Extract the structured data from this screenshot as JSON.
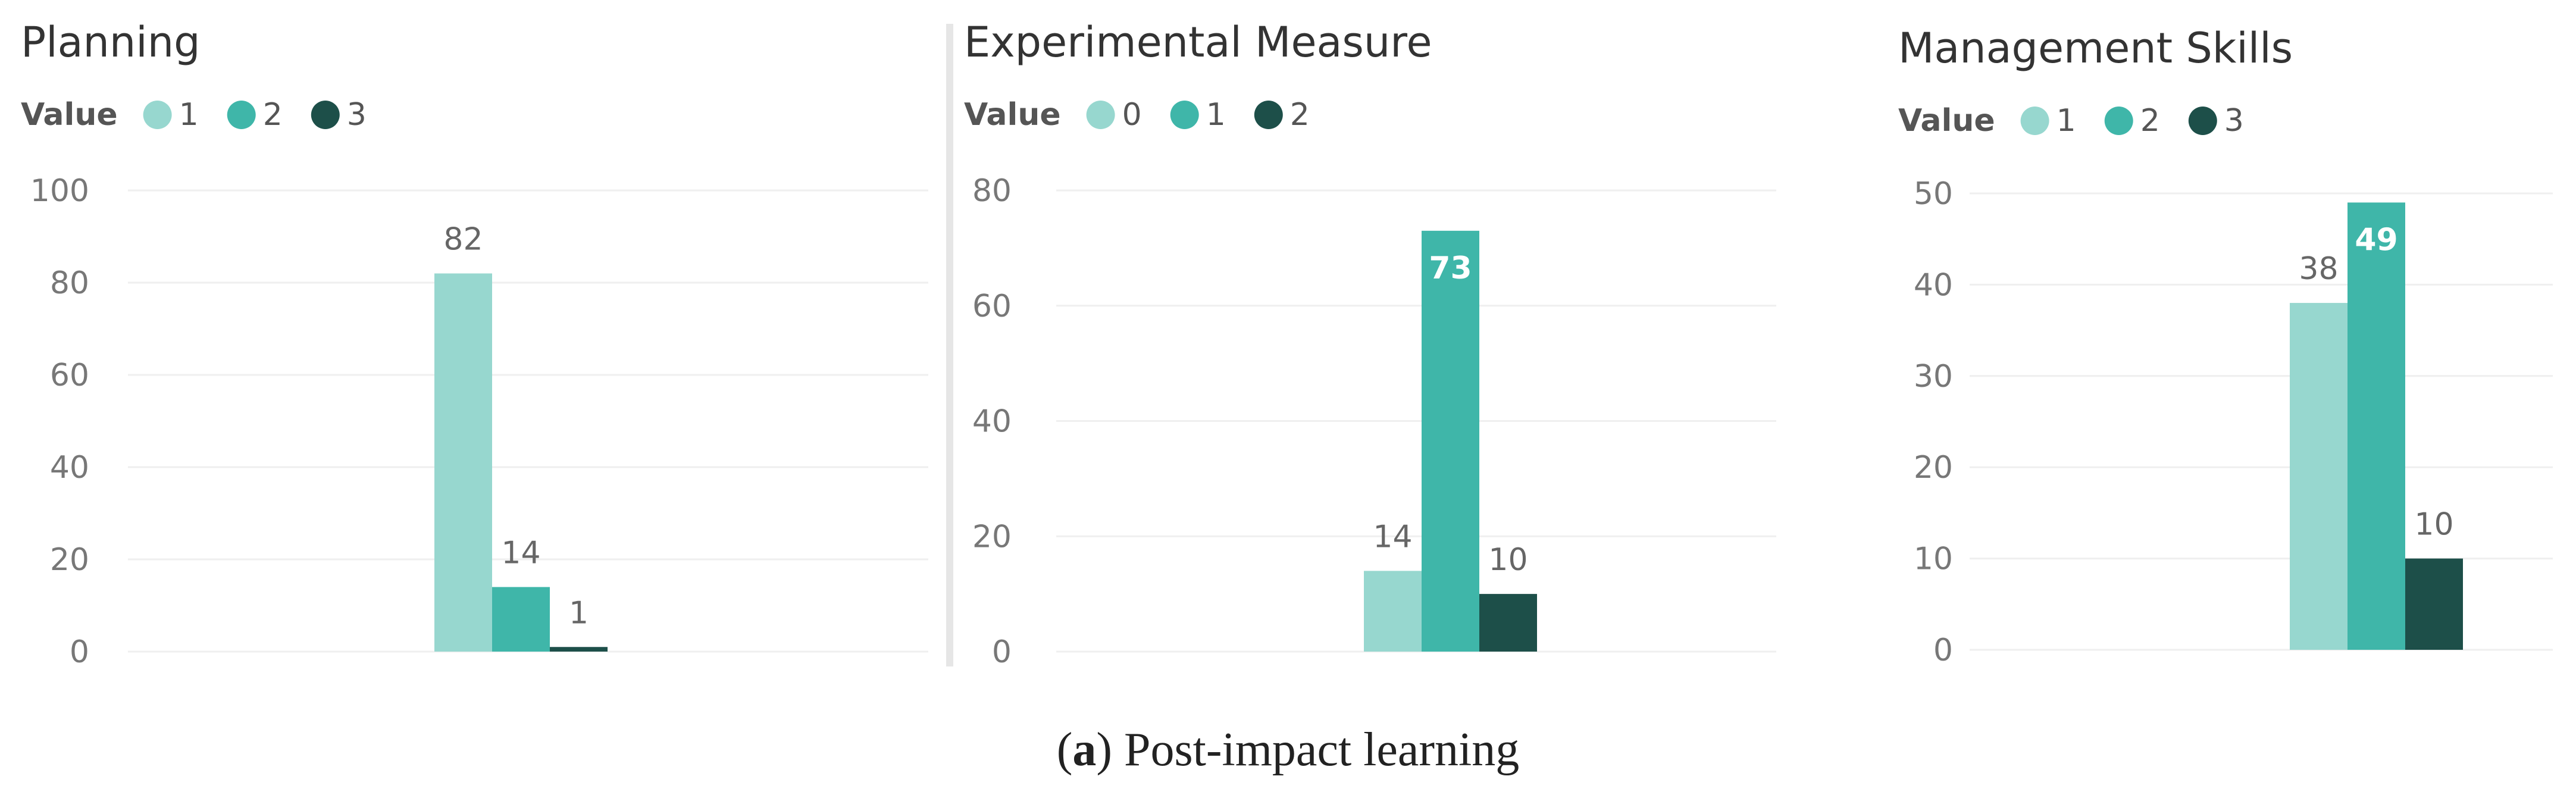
{
  "colors": [
    "#97d7cf",
    "#3fb6a9",
    "#1d4f49"
  ],
  "chart_data": [
    {
      "type": "bar",
      "title": "Planning",
      "legend_title": "Value",
      "categories": [
        ""
      ],
      "series": [
        {
          "name": "1",
          "values": [
            82
          ]
        },
        {
          "name": "2",
          "values": [
            14
          ]
        },
        {
          "name": "3",
          "values": [
            1
          ]
        }
      ],
      "ylim": [
        0,
        100
      ],
      "yticks": [
        0,
        20,
        40,
        60,
        80,
        100
      ],
      "grid": true,
      "legend_position": "top-left"
    },
    {
      "type": "bar",
      "title": "Experimental Measure",
      "legend_title": "Value",
      "categories": [
        ""
      ],
      "series": [
        {
          "name": "0",
          "values": [
            14
          ]
        },
        {
          "name": "1",
          "values": [
            73
          ]
        },
        {
          "name": "2",
          "values": [
            10
          ]
        }
      ],
      "ylim": [
        0,
        80
      ],
      "yticks": [
        0,
        20,
        40,
        60,
        80
      ],
      "grid": true,
      "legend_position": "top-left"
    },
    {
      "type": "bar",
      "title": "Management Skills",
      "legend_title": "Value",
      "categories": [
        ""
      ],
      "series": [
        {
          "name": "1",
          "values": [
            38
          ]
        },
        {
          "name": "2",
          "values": [
            49
          ]
        },
        {
          "name": "3",
          "values": [
            10
          ]
        }
      ],
      "ylim": [
        0,
        50
      ],
      "yticks": [
        0,
        10,
        20,
        30,
        40,
        50
      ],
      "grid": true,
      "legend_position": "top-left"
    }
  ],
  "caption": {
    "prefix_open": "(",
    "bold": "a",
    "rest": ") Post-impact learning"
  }
}
